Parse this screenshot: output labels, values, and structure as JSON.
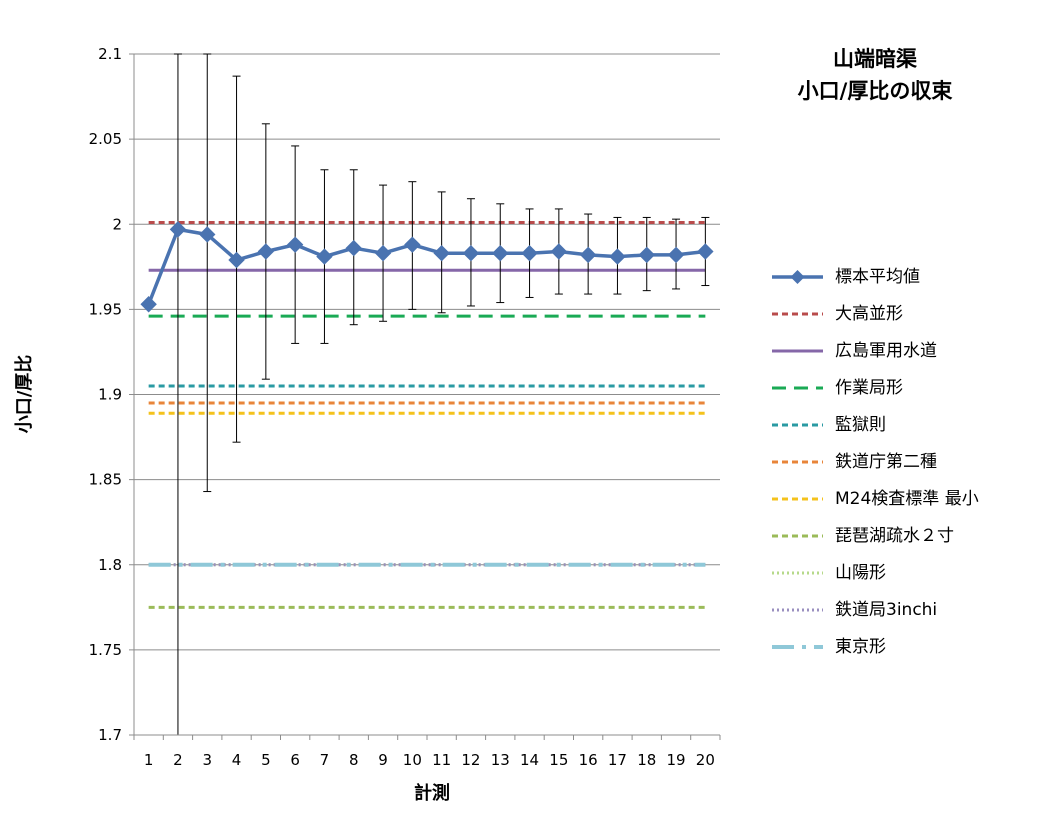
{
  "chart_data": {
    "type": "line",
    "title_lines": [
      "山端暗渠",
      "小口/厚比の収束"
    ],
    "xlabel": "計測",
    "ylabel": "小口/厚比",
    "ylim": [
      1.7,
      2.1
    ],
    "yticks": [
      "1.7",
      "1.75",
      "1.8",
      "1.85",
      "1.9",
      "1.95",
      "2",
      "2.05",
      "2.1"
    ],
    "x": [
      1,
      2,
      3,
      4,
      5,
      6,
      7,
      8,
      9,
      10,
      11,
      12,
      13,
      14,
      15,
      16,
      17,
      18,
      19,
      20
    ],
    "grid": true,
    "legend_position": "right",
    "series": [
      {
        "name": "標本平均値",
        "style": "line-marker",
        "color": "#4a73b0",
        "values": [
          1.953,
          1.997,
          1.994,
          1.979,
          1.984,
          1.988,
          1.981,
          1.986,
          1.983,
          1.988,
          1.983,
          1.983,
          1.983,
          1.983,
          1.984,
          1.982,
          1.981,
          1.982,
          1.982,
          1.984
        ],
        "error_upper": [
          null,
          2.1,
          2.1,
          2.087,
          2.059,
          2.046,
          2.032,
          2.032,
          2.023,
          2.025,
          2.019,
          2.015,
          2.012,
          2.009,
          2.009,
          2.006,
          2.004,
          2.004,
          2.003,
          2.004
        ],
        "error_lower": [
          null,
          1.7,
          1.843,
          1.872,
          1.909,
          1.93,
          1.93,
          1.941,
          1.943,
          1.95,
          1.948,
          1.952,
          1.954,
          1.957,
          1.959,
          1.959,
          1.959,
          1.961,
          1.962,
          1.964
        ]
      },
      {
        "name": "大高並形",
        "style": "hline",
        "dash": "short",
        "color": "#b94b4b",
        "value": 2.001
      },
      {
        "name": "広島軍用水道",
        "style": "hline",
        "dash": "solid",
        "color": "#8567a8",
        "value": 1.973
      },
      {
        "name": "作業局形",
        "style": "hline",
        "dash": "long",
        "color": "#1aaa55",
        "value": 1.946
      },
      {
        "name": "監獄則",
        "style": "hline",
        "dash": "short",
        "color": "#2a9aa3",
        "value": 1.905
      },
      {
        "name": "鉄道庁第二種",
        "style": "hline",
        "dash": "short",
        "color": "#e8853a",
        "value": 1.895
      },
      {
        "name": "M24検査標準 最小",
        "style": "hline",
        "dash": "short",
        "color": "#f4c21c",
        "value": 1.889
      },
      {
        "name": "琵琶湖疏水２寸",
        "style": "hline",
        "dash": "short",
        "color": "#9bbb59",
        "value": 1.775
      },
      {
        "name": "山陽形",
        "style": "hline",
        "dash": "dot",
        "color": "#b6d98a",
        "value": 1.8
      },
      {
        "name": "鉄道局3inchi",
        "style": "hline",
        "dash": "dot",
        "color": "#9a8fbf",
        "value": 1.8
      },
      {
        "name": "東京形",
        "style": "hline",
        "dash": "dashdot",
        "color": "#8fc8d8",
        "value": 1.8
      }
    ]
  }
}
